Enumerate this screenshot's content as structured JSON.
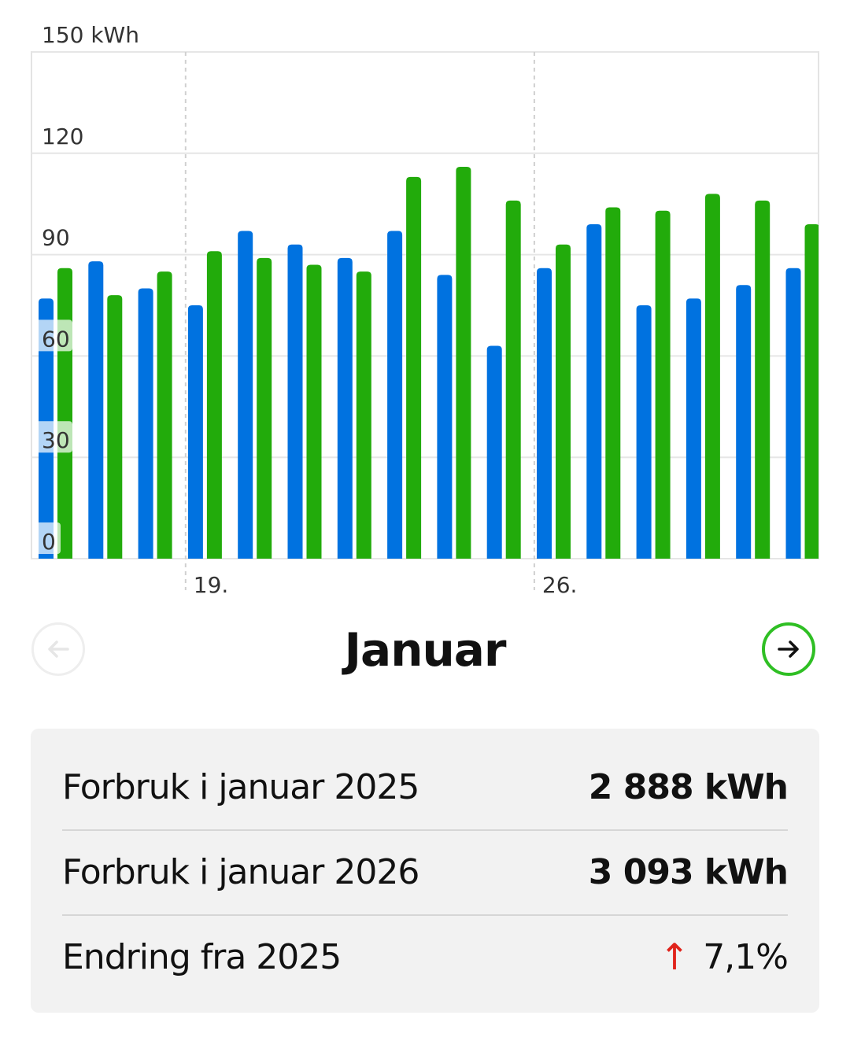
{
  "chart_data": {
    "type": "bar",
    "y_unit": "kWh",
    "yticks": [
      "0",
      "30",
      "60",
      "90",
      "120",
      "150 kWh"
    ],
    "ylim": [
      0,
      150
    ],
    "xtick_labels": [
      {
        "day": 19,
        "label": "19."
      },
      {
        "day": 26,
        "label": "26."
      }
    ],
    "days": [
      16,
      17,
      18,
      19,
      20,
      21,
      22,
      23,
      24,
      25,
      26,
      27,
      28,
      29,
      30,
      31
    ],
    "series": [
      {
        "color": "#0072e0",
        "values": [
          77,
          88,
          80,
          75,
          97,
          93,
          89,
          97,
          84,
          63,
          86,
          99,
          75,
          77,
          81,
          86
        ]
      },
      {
        "color": "#22ab0b",
        "values": [
          86,
          78,
          85,
          91,
          89,
          87,
          85,
          113,
          116,
          106,
          93,
          104,
          103,
          108,
          106,
          99
        ]
      }
    ],
    "grid": true
  },
  "navigation": {
    "month": "Januar",
    "prev_icon": "arrow-left-icon",
    "next_icon": "arrow-right-icon"
  },
  "summary": {
    "rows": [
      {
        "label": "Forbruk i januar 2025",
        "value": "2 888 kWh"
      },
      {
        "label": "Forbruk i januar 2026",
        "value": "3 093 kWh"
      },
      {
        "label": "Endring fra 2025",
        "value": "7,1%",
        "arrow": "↑"
      }
    ]
  },
  "colors": {
    "accent_green": "#2fbf24",
    "change_up": "#e0231b"
  }
}
